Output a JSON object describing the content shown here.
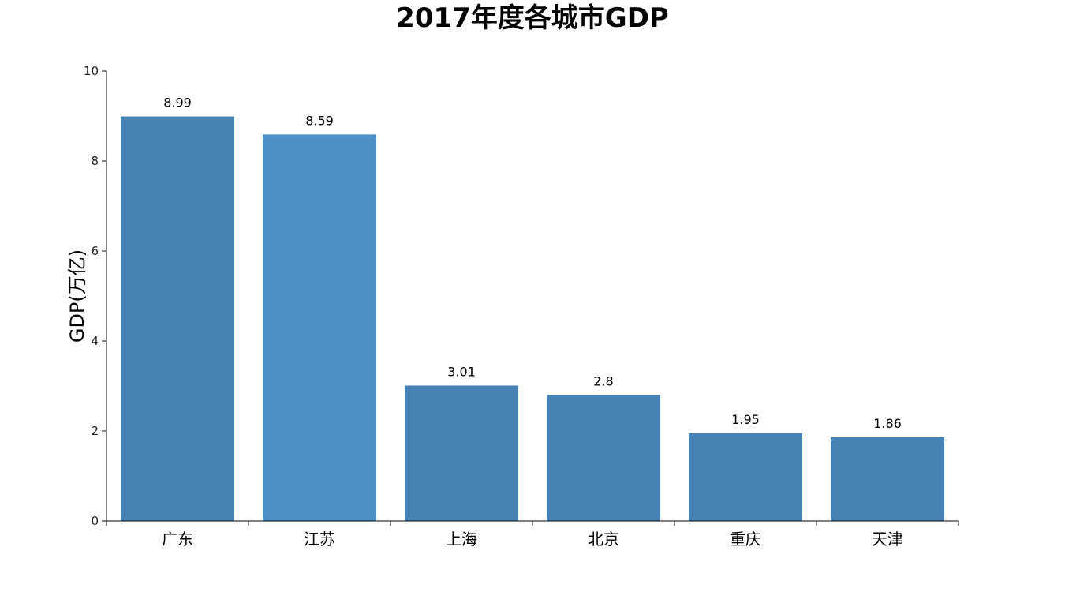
{
  "chart_data": {
    "type": "bar",
    "title": "2017年度各城市GDP",
    "xlabel": "",
    "ylabel": "GDP(万亿)",
    "categories": [
      "广东",
      "江苏",
      "上海",
      "北京",
      "重庆",
      "天津"
    ],
    "values": [
      8.99,
      8.59,
      3.01,
      2.8,
      1.95,
      1.86
    ],
    "value_labels": [
      "8.99",
      "8.59",
      "3.01",
      "2.8",
      "1.95",
      "1.86"
    ],
    "ylim": [
      0,
      10
    ],
    "yticks": [
      0,
      2,
      4,
      6,
      8,
      10
    ],
    "grid": false,
    "legend": "none",
    "colors": {
      "bar": "#4682b4",
      "highlighted_bar": "#4d8fc7",
      "axis": "#000000"
    },
    "highlighted_index": 1
  }
}
